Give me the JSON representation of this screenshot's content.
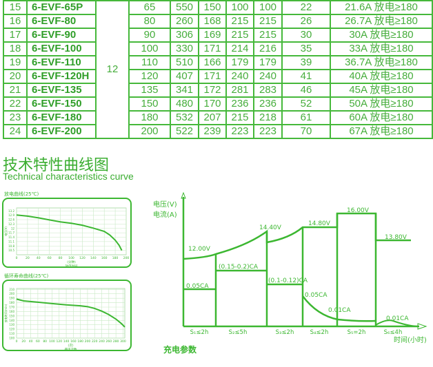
{
  "table": {
    "voltage": "12",
    "rows": [
      {
        "no": "15",
        "model": "6-EVF-65P",
        "cap": "65",
        "c1": "550",
        "c2": "150",
        "c3": "100",
        "c4": "100",
        "weight": "22",
        "disch": "21.6A 放电≥180"
      },
      {
        "no": "16",
        "model": "6-EVF-80",
        "cap": "80",
        "c1": "260",
        "c2": "168",
        "c3": "215",
        "c4": "215",
        "weight": "26",
        "disch": "26.7A 放电≥180"
      },
      {
        "no": "17",
        "model": "6-EVF-90",
        "cap": "90",
        "c1": "306",
        "c2": "169",
        "c3": "215",
        "c4": "215",
        "weight": "30",
        "disch": "30A 放电≥180"
      },
      {
        "no": "18",
        "model": "6-EVF-100",
        "cap": "100",
        "c1": "330",
        "c2": "171",
        "c3": "214",
        "c4": "216",
        "weight": "35",
        "disch": "33A 放电≥180"
      },
      {
        "no": "19",
        "model": "6-EVF-110",
        "cap": "110",
        "c1": "510",
        "c2": "166",
        "c3": "179",
        "c4": "179",
        "weight": "39",
        "disch": "36.7A 放电≥180"
      },
      {
        "no": "20",
        "model": "6-EVF-120H",
        "cap": "120",
        "c1": "407",
        "c2": "171",
        "c3": "240",
        "c4": "240",
        "weight": "41",
        "disch": "40A 放电≥180"
      },
      {
        "no": "21",
        "model": "6-EVF-135",
        "cap": "135",
        "c1": "341",
        "c2": "172",
        "c3": "281",
        "c4": "283",
        "weight": "46",
        "disch": "45A 放电≥180"
      },
      {
        "no": "22",
        "model": "6-EVF-150",
        "cap": "150",
        "c1": "480",
        "c2": "170",
        "c3": "236",
        "c4": "236",
        "weight": "52",
        "disch": "50A 放电≥180"
      },
      {
        "no": "23",
        "model": "6-EVF-180",
        "cap": "180",
        "c1": "532",
        "c2": "207",
        "c3": "215",
        "c4": "218",
        "weight": "61",
        "disch": "60A 放电≥180"
      },
      {
        "no": "24",
        "model": "6-EVF-200",
        "cap": "200",
        "c1": "522",
        "c2": "239",
        "c3": "223",
        "c4": "223",
        "weight": "70",
        "disch": "67A 放电≥180"
      }
    ]
  },
  "section": {
    "title_cn": "技术特性曲线图",
    "title_en": "Technical characteristics curve"
  },
  "accent_color": "#3cb731",
  "chart_data": [
    {
      "type": "line",
      "title": "放电曲线(25℃)",
      "ylabel": "电压(V)",
      "xlabel": "放电时间",
      "xunit": "(分钟)",
      "xticks": [
        0,
        20,
        40,
        60,
        80,
        100,
        120,
        140,
        160,
        180,
        200
      ],
      "yticks": [
        13.2,
        12.9,
        12.6,
        12.3,
        12.0,
        11.7,
        11.4,
        11.1,
        10.8,
        10.5
      ],
      "xlim": [
        0,
        200
      ],
      "ylim": [
        10.2,
        13.4
      ],
      "x": [
        0,
        20,
        40,
        60,
        80,
        100,
        120,
        140,
        160,
        170,
        180,
        187,
        192
      ],
      "y": [
        12.92,
        12.84,
        12.72,
        12.58,
        12.45,
        12.35,
        12.22,
        12.02,
        11.8,
        11.55,
        11.2,
        10.85,
        10.5
      ]
    },
    {
      "type": "line",
      "title": "循环寿命曲线(25℃)",
      "ylabel": "放电时间(min)",
      "xlabel": "循环次数",
      "xunit": "(次)",
      "xticks": [
        0,
        20,
        40,
        60,
        80,
        100,
        120,
        140,
        160,
        180,
        200,
        220,
        240,
        260,
        280,
        300
      ],
      "yticks": [
        210,
        200,
        190,
        180,
        170,
        160,
        150,
        140,
        130,
        120,
        110,
        100
      ],
      "xlim": [
        0,
        305
      ],
      "ylim": [
        100,
        212
      ],
      "x": [
        0,
        20,
        60,
        100,
        140,
        180,
        200,
        220,
        240,
        260,
        280,
        295,
        305
      ],
      "y": [
        188,
        184,
        181,
        178,
        175,
        173,
        171,
        167,
        161,
        153,
        143,
        133,
        125
      ]
    },
    {
      "type": "line",
      "title": "充电参数",
      "ylabel_v": "电压(V)",
      "ylabel_a": "电流(A)",
      "xlabel": "时间(小时)",
      "stages": [
        "S₁≤2h",
        "S₂≤5h",
        "S₃≤2h",
        "S₄≤2h",
        "S₅=2h",
        "S₆≤4h"
      ],
      "voltage_labels": [
        "12.00V",
        "14.40V",
        "14.80V",
        "16.00V",
        "13.80V"
      ],
      "current_labels": [
        "0.05CA",
        "(0.15-0.2)CA",
        "(0.1-0.12)CA",
        "0.05CA",
        "0.01CA",
        "0.01CA"
      ]
    }
  ]
}
